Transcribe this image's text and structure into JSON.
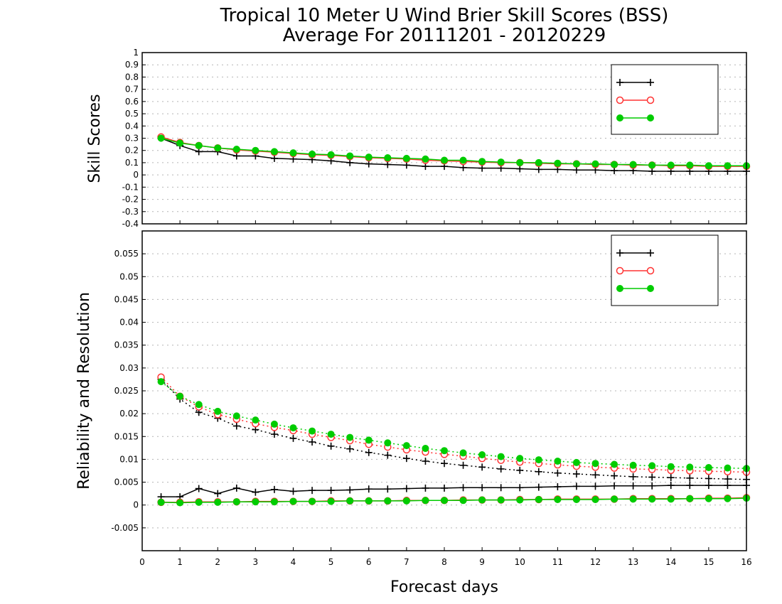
{
  "title_line1": "Tropical 10 Meter U Wind Brier Skill Scores (BSS)",
  "title_line2": "Average For 20111201 - 20120229",
  "xlabel": "Forecast days",
  "colors": {
    "black": "#000000",
    "red": "#ff3333",
    "green": "#00cc00",
    "grid": "#b4b4b4"
  },
  "chart_data": [
    {
      "type": "line",
      "ylabel": "Skill Scores",
      "xlim": [
        0,
        16
      ],
      "ylim": [
        -0.4,
        1
      ],
      "xticks": [
        0,
        1,
        2,
        3,
        4,
        5,
        6,
        7,
        8,
        9,
        10,
        11,
        12,
        13,
        14,
        15,
        16
      ],
      "xtick_labels": [
        "0",
        "1",
        "2",
        "3",
        "4",
        "5",
        "6",
        "7",
        "8",
        "9",
        "10",
        "11",
        "12",
        "13",
        "14",
        "15",
        "16"
      ],
      "yticks": [
        -0.4,
        -0.3,
        -0.2,
        -0.1,
        0,
        0.1,
        0.2,
        0.3,
        0.4,
        0.5,
        0.6,
        0.7,
        0.8,
        0.9,
        1
      ],
      "ytick_labels": [
        "-0.4",
        "-0.3",
        "-0.2",
        "-0.1",
        "0",
        "0.1",
        "0.2",
        "0.3",
        "0.4",
        "0.5",
        "0.6",
        "0.7",
        "0.8",
        "0.9",
        "1"
      ],
      "grid": true,
      "legend_position": "top-right",
      "x": [
        0.5,
        1,
        1.5,
        2,
        2.5,
        3,
        3.5,
        4,
        4.5,
        5,
        5.5,
        6,
        6.5,
        7,
        7.5,
        8,
        8.5,
        9,
        9.5,
        10,
        10.5,
        11,
        11.5,
        12,
        12.5,
        13,
        13.5,
        14,
        14.5,
        15,
        15.5,
        16
      ],
      "series": [
        {
          "name": "",
          "color": "#000000",
          "marker": "plus",
          "dash": "solid",
          "values": [
            0.3,
            0.24,
            0.19,
            0.19,
            0.155,
            0.155,
            0.135,
            0.13,
            0.125,
            0.115,
            0.1,
            0.09,
            0.085,
            0.08,
            0.07,
            0.07,
            0.06,
            0.055,
            0.055,
            0.05,
            0.045,
            0.045,
            0.04,
            0.04,
            0.035,
            0.035,
            0.03,
            0.03,
            0.03,
            0.03,
            0.03,
            0.03
          ]
        },
        {
          "name": "",
          "color": "#ff3333",
          "marker": "open-circle",
          "dash": "solid",
          "values": [
            0.31,
            0.265,
            0.24,
            0.22,
            0.205,
            0.195,
            0.185,
            0.175,
            0.165,
            0.16,
            0.15,
            0.14,
            0.135,
            0.13,
            0.12,
            0.115,
            0.11,
            0.105,
            0.1,
            0.1,
            0.095,
            0.09,
            0.09,
            0.085,
            0.085,
            0.08,
            0.08,
            0.075,
            0.075,
            0.07,
            0.07,
            0.07
          ]
        },
        {
          "name": "",
          "color": "#00cc00",
          "marker": "filled-circle",
          "dash": "solid",
          "values": [
            0.3,
            0.26,
            0.24,
            0.22,
            0.21,
            0.2,
            0.19,
            0.18,
            0.17,
            0.165,
            0.155,
            0.145,
            0.14,
            0.135,
            0.13,
            0.12,
            0.12,
            0.11,
            0.105,
            0.1,
            0.1,
            0.095,
            0.09,
            0.09,
            0.085,
            0.085,
            0.08,
            0.08,
            0.08,
            0.075,
            0.075,
            0.075
          ]
        }
      ]
    },
    {
      "type": "line",
      "ylabel": "Reliability and Resolution",
      "xlim": [
        0,
        16
      ],
      "ylim": [
        -0.01,
        0.06
      ],
      "xticks": [
        0,
        1,
        2,
        3,
        4,
        5,
        6,
        7,
        8,
        9,
        10,
        11,
        12,
        13,
        14,
        15,
        16
      ],
      "xtick_labels": [
        "0",
        "1",
        "2",
        "3",
        "4",
        "5",
        "6",
        "7",
        "8",
        "9",
        "10",
        "11",
        "12",
        "13",
        "14",
        "15",
        "16"
      ],
      "yticks": [
        -0.005,
        0,
        0.005,
        0.01,
        0.015,
        0.02,
        0.025,
        0.03,
        0.035,
        0.04,
        0.045,
        0.05,
        0.055
      ],
      "ytick_labels": [
        "-0.005",
        "0",
        "0.005",
        "0.01",
        "0.015",
        "0.02",
        "0.025",
        "0.03",
        "0.035",
        "0.04",
        "0.045",
        "0.05",
        "0.055"
      ],
      "grid": true,
      "legend_position": "top-right",
      "x": [
        0.5,
        1,
        1.5,
        2,
        2.5,
        3,
        3.5,
        4,
        4.5,
        5,
        5.5,
        6,
        6.5,
        7,
        7.5,
        8,
        8.5,
        9,
        9.5,
        10,
        10.5,
        11,
        11.5,
        12,
        12.5,
        13,
        13.5,
        14,
        14.5,
        15,
        15.5,
        16
      ],
      "series": [
        {
          "name": "",
          "color": "#000000",
          "marker": "plus",
          "dash": "dotted",
          "kind": "resolution",
          "values": [
            0.0275,
            0.0232,
            0.0203,
            0.019,
            0.0173,
            0.0165,
            0.0155,
            0.0146,
            0.0138,
            0.0129,
            0.0123,
            0.0115,
            0.0109,
            0.0102,
            0.0096,
            0.0091,
            0.0087,
            0.0083,
            0.0079,
            0.0076,
            0.0073,
            0.007,
            0.0068,
            0.0066,
            0.0064,
            0.0062,
            0.0061,
            0.006,
            0.0059,
            0.0058,
            0.0057,
            0.0056
          ]
        },
        {
          "name": "",
          "color": "#ff3333",
          "marker": "open-circle",
          "dash": "dotted",
          "kind": "resolution",
          "values": [
            0.028,
            0.0238,
            0.0215,
            0.0198,
            0.0188,
            0.0178,
            0.017,
            0.0163,
            0.0155,
            0.0148,
            0.0141,
            0.0133,
            0.0127,
            0.0121,
            0.0116,
            0.0111,
            0.0107,
            0.0102,
            0.0098,
            0.0094,
            0.0091,
            0.0088,
            0.0085,
            0.0083,
            0.0081,
            0.0079,
            0.0078,
            0.0076,
            0.0075,
            0.0074,
            0.0073,
            0.0072
          ]
        },
        {
          "name": "",
          "color": "#00cc00",
          "marker": "filled-circle",
          "dash": "dotted",
          "kind": "resolution",
          "values": [
            0.027,
            0.0238,
            0.022,
            0.0205,
            0.0195,
            0.0186,
            0.0177,
            0.0169,
            0.0162,
            0.0155,
            0.0148,
            0.0142,
            0.0136,
            0.013,
            0.0124,
            0.0119,
            0.0114,
            0.011,
            0.0106,
            0.0102,
            0.0099,
            0.0096,
            0.0093,
            0.0091,
            0.0089,
            0.0087,
            0.0086,
            0.0084,
            0.0083,
            0.0082,
            0.0081,
            0.008
          ]
        },
        {
          "name": "",
          "color": "#000000",
          "marker": "plus",
          "dash": "solid",
          "kind": "reliability",
          "values": [
            0.0018,
            0.0018,
            0.0036,
            0.0025,
            0.0037,
            0.0028,
            0.0034,
            0.003,
            0.0032,
            0.0032,
            0.0033,
            0.0035,
            0.0035,
            0.0036,
            0.0037,
            0.0037,
            0.0038,
            0.0038,
            0.0038,
            0.0038,
            0.0039,
            0.004,
            0.0041,
            0.0041,
            0.0042,
            0.0042,
            0.0042,
            0.0043,
            0.0043,
            0.0043,
            0.0043,
            0.0043
          ]
        },
        {
          "name": "",
          "color": "#ff3333",
          "marker": "open-circle",
          "dash": "solid",
          "kind": "reliability",
          "values": [
            0.0006,
            0.0006,
            0.0007,
            0.0007,
            0.0007,
            0.0008,
            0.0008,
            0.0008,
            0.0008,
            0.0009,
            0.0009,
            0.0009,
            0.0009,
            0.001,
            0.001,
            0.001,
            0.0011,
            0.0011,
            0.0011,
            0.0012,
            0.0012,
            0.0013,
            0.0013,
            0.0013,
            0.0013,
            0.0014,
            0.0014,
            0.0014,
            0.0014,
            0.0015,
            0.0015,
            0.0016
          ]
        },
        {
          "name": "",
          "color": "#00cc00",
          "marker": "filled-circle",
          "dash": "solid",
          "kind": "reliability",
          "values": [
            0.0006,
            0.0005,
            0.0006,
            0.0006,
            0.0007,
            0.0007,
            0.0007,
            0.0008,
            0.0008,
            0.0008,
            0.0009,
            0.0009,
            0.0009,
            0.0009,
            0.001,
            0.001,
            0.001,
            0.0011,
            0.0011,
            0.0011,
            0.0012,
            0.0012,
            0.0012,
            0.0012,
            0.0013,
            0.0013,
            0.0013,
            0.0013,
            0.0014,
            0.0014,
            0.0014,
            0.0015
          ]
        }
      ]
    }
  ]
}
